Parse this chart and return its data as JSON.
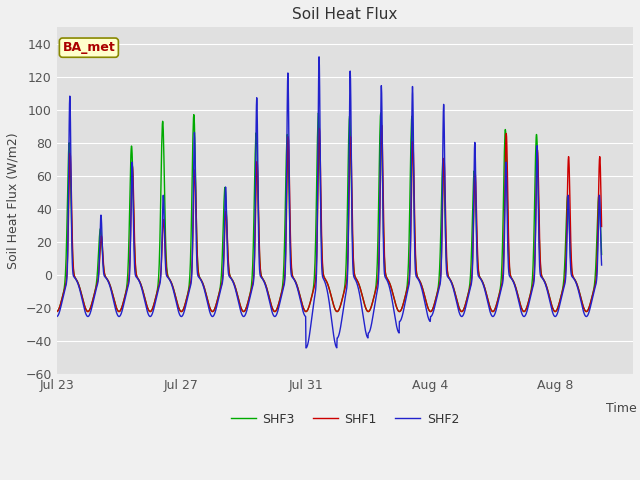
{
  "title": "Soil Heat Flux",
  "ylabel": "Soil Heat Flux (W/m2)",
  "xlabel": "Time",
  "ylim": [
    -60,
    150
  ],
  "yticks": [
    -60,
    -40,
    -20,
    0,
    20,
    40,
    60,
    80,
    100,
    120,
    140
  ],
  "xlim": [
    0,
    18.5
  ],
  "xtick_labels": [
    "Jul 23",
    "Jul 27",
    "Jul 31",
    "Aug 4",
    "Aug 8"
  ],
  "xtick_positions": [
    0,
    4,
    8,
    12,
    16
  ],
  "legend_labels": [
    "SHF1",
    "SHF2",
    "SHF3"
  ],
  "line_colors": [
    "#cc0000",
    "#2222cc",
    "#00aa00"
  ],
  "fig_bg_color": "#f0f0f0",
  "plot_bg_color": "#e0e0e0",
  "grid_color": "#ffffff",
  "annotation_text": "BA_met",
  "annotation_fg": "#aa0000",
  "annotation_bg": "#ffffcc",
  "annotation_border": "#888800",
  "day_amps_shf2": [
    110,
    38,
    70,
    50,
    88,
    55,
    109,
    124,
    135,
    126,
    117,
    116,
    105,
    82,
    70,
    80,
    50
  ],
  "day_amps_shf1": [
    75,
    25,
    67,
    35,
    65,
    40,
    70,
    85,
    90,
    85,
    92,
    82,
    72,
    63,
    87,
    77,
    73
  ],
  "day_amps_shf3": [
    82,
    30,
    80,
    95,
    99,
    55,
    88,
    87,
    100,
    98,
    100,
    98,
    72,
    65,
    90,
    87,
    50
  ],
  "night_depth_shf1": -22,
  "night_depth_shf2": -25,
  "night_depth_shf3": -22,
  "trough_shf2_days": [
    8,
    9
  ],
  "trough_shf2_depths": [
    -44,
    -38
  ]
}
